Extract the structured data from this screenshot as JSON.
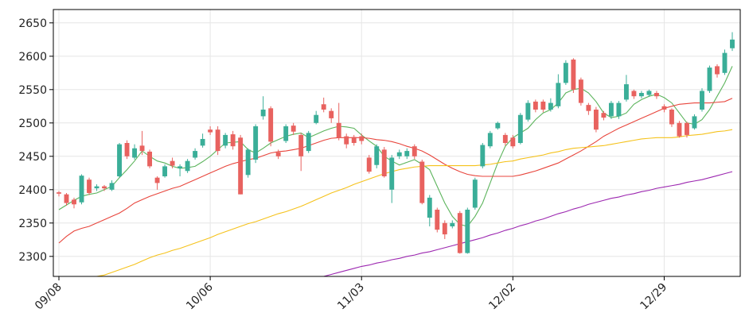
{
  "chart_data": {
    "type": "candlestick",
    "categories": [
      "09/08",
      null,
      null,
      null,
      null,
      null,
      null,
      null,
      null,
      null,
      null,
      null,
      null,
      null,
      null,
      null,
      null,
      null,
      null,
      null,
      "10/06",
      null,
      null,
      null,
      null,
      null,
      null,
      null,
      null,
      null,
      null,
      null,
      null,
      null,
      null,
      null,
      null,
      null,
      null,
      null,
      "11/03",
      null,
      null,
      null,
      null,
      null,
      null,
      null,
      null,
      null,
      null,
      null,
      null,
      null,
      null,
      null,
      null,
      null,
      null,
      null,
      "12/02",
      null,
      null,
      null,
      null,
      null,
      null,
      null,
      null,
      null,
      null,
      null,
      null,
      null,
      null,
      null,
      null,
      null,
      null,
      null,
      "12/29",
      null,
      null,
      null,
      null,
      null,
      null,
      null,
      null,
      null
    ],
    "open": [
      2396,
      2393,
      2385,
      2381,
      2415,
      2402,
      2405,
      2400,
      2420,
      2470,
      2448,
      2466,
      2457,
      2418,
      2420,
      2443,
      2432,
      2428,
      2448,
      2466,
      2490,
      2490,
      2466,
      2483,
      2478,
      2422,
      2445,
      2510,
      2522,
      2456,
      2473,
      2496,
      2482,
      2458,
      2500,
      2528,
      2518,
      2500,
      2480,
      2479,
      2480,
      2448,
      2437,
      2460,
      2400,
      2450,
      2450,
      2465,
      2442,
      2358,
      2370,
      2350,
      2345,
      2365,
      2305,
      2373,
      2435,
      2465,
      2492,
      2482,
      2478,
      2470,
      2505,
      2532,
      2532,
      2520,
      2525,
      2560,
      2595,
      2565,
      2527,
      2520,
      2515,
      2510,
      2510,
      2535,
      2548,
      2540,
      2542,
      2545,
      2525,
      2520,
      2500,
      2500,
      2492,
      2520,
      2548,
      2585,
      2575,
      2612
    ],
    "high": [
      2398,
      2395,
      2388,
      2423,
      2418,
      2408,
      2407,
      2414,
      2470,
      2474,
      2468,
      2488,
      2460,
      2420,
      2438,
      2448,
      2438,
      2446,
      2462,
      2484,
      2495,
      2495,
      2485,
      2488,
      2482,
      2462,
      2498,
      2540,
      2525,
      2460,
      2498,
      2500,
      2485,
      2488,
      2518,
      2538,
      2522,
      2530,
      2484,
      2482,
      2484,
      2452,
      2468,
      2464,
      2452,
      2460,
      2462,
      2468,
      2445,
      2392,
      2373,
      2354,
      2354,
      2368,
      2373,
      2418,
      2470,
      2488,
      2502,
      2485,
      2482,
      2515,
      2534,
      2535,
      2535,
      2537,
      2573,
      2594,
      2597,
      2568,
      2530,
      2524,
      2518,
      2533,
      2533,
      2572,
      2550,
      2548,
      2550,
      2548,
      2528,
      2522,
      2503,
      2502,
      2513,
      2552,
      2586,
      2588,
      2610,
      2636
    ],
    "low": [
      2390,
      2376,
      2372,
      2378,
      2392,
      2398,
      2398,
      2398,
      2418,
      2446,
      2445,
      2452,
      2432,
      2400,
      2418,
      2432,
      2420,
      2425,
      2445,
      2463,
      2482,
      2452,
      2462,
      2460,
      2393,
      2418,
      2440,
      2505,
      2465,
      2446,
      2470,
      2482,
      2428,
      2455,
      2498,
      2516,
      2500,
      2474,
      2462,
      2466,
      2468,
      2424,
      2432,
      2418,
      2380,
      2446,
      2446,
      2446,
      2378,
      2345,
      2336,
      2326,
      2342,
      2304,
      2304,
      2370,
      2432,
      2462,
      2490,
      2466,
      2462,
      2468,
      2502,
      2516,
      2516,
      2517,
      2522,
      2557,
      2545,
      2526,
      2512,
      2486,
      2504,
      2506,
      2506,
      2532,
      2536,
      2537,
      2539,
      2536,
      2516,
      2494,
      2478,
      2478,
      2490,
      2517,
      2545,
      2568,
      2572,
      2608
    ],
    "close": [
      2394,
      2380,
      2378,
      2421,
      2395,
      2405,
      2402,
      2410,
      2468,
      2450,
      2462,
      2458,
      2435,
      2410,
      2435,
      2436,
      2435,
      2443,
      2458,
      2476,
      2486,
      2458,
      2482,
      2465,
      2393,
      2460,
      2495,
      2520,
      2472,
      2450,
      2495,
      2487,
      2450,
      2485,
      2512,
      2520,
      2507,
      2478,
      2468,
      2470,
      2473,
      2427,
      2465,
      2420,
      2448,
      2456,
      2458,
      2450,
      2380,
      2388,
      2340,
      2333,
      2350,
      2305,
      2370,
      2415,
      2467,
      2485,
      2500,
      2470,
      2465,
      2512,
      2530,
      2520,
      2520,
      2530,
      2560,
      2590,
      2550,
      2530,
      2518,
      2490,
      2508,
      2530,
      2530,
      2558,
      2540,
      2545,
      2548,
      2540,
      2520,
      2498,
      2480,
      2482,
      2510,
      2548,
      2583,
      2573,
      2605,
      2625
    ],
    "up_color": "#3aae98",
    "down_color": "#e8625f",
    "series": [
      {
        "color": "#5cb45c",
        "values": [
          2370,
          2377,
          2384,
          2390,
          2393,
          2395,
          2400,
          2405,
          2418,
          2430,
          2443,
          2458,
          2450,
          2443,
          2440,
          2435,
          2432,
          2433,
          2435,
          2442,
          2450,
          2460,
          2470,
          2471,
          2472,
          2460,
          2455,
          2462,
          2470,
          2475,
          2480,
          2483,
          2485,
          2478,
          2483,
          2488,
          2492,
          2495,
          2494,
          2492,
          2482,
          2473,
          2465,
          2450,
          2443,
          2437,
          2441,
          2445,
          2438,
          2430,
          2405,
          2380,
          2360,
          2348,
          2345,
          2360,
          2380,
          2410,
          2440,
          2465,
          2478,
          2485,
          2492,
          2505,
          2515,
          2520,
          2530,
          2545,
          2550,
          2552,
          2545,
          2532,
          2515,
          2508,
          2510,
          2515,
          2528,
          2535,
          2540,
          2543,
          2538,
          2530,
          2515,
          2500,
          2498,
          2505,
          2520,
          2540,
          2560,
          2585
        ]
      },
      {
        "color": "#e8453c",
        "values": [
          2320,
          2330,
          2338,
          2342,
          2345,
          2350,
          2355,
          2360,
          2365,
          2372,
          2380,
          2385,
          2390,
          2394,
          2398,
          2402,
          2405,
          2410,
          2415,
          2420,
          2425,
          2430,
          2435,
          2439,
          2442,
          2445,
          2447,
          2451,
          2455,
          2457,
          2458,
          2460,
          2462,
          2466,
          2470,
          2474,
          2477,
          2478,
          2478,
          2478,
          2478,
          2477,
          2475,
          2474,
          2472,
          2469,
          2465,
          2462,
          2458,
          2452,
          2445,
          2438,
          2432,
          2427,
          2423,
          2421,
          2420,
          2420,
          2420,
          2420,
          2420,
          2422,
          2425,
          2428,
          2432,
          2436,
          2440,
          2446,
          2452,
          2458,
          2465,
          2472,
          2480,
          2486,
          2492,
          2497,
          2502,
          2507,
          2512,
          2517,
          2522,
          2525,
          2528,
          2529,
          2530,
          2530,
          2530,
          2531,
          2532,
          2537
        ]
      },
      {
        "color": "#f5c21b",
        "values": [
          null,
          null,
          null,
          null,
          null,
          2270,
          2272,
          2276,
          2280,
          2284,
          2288,
          2293,
          2298,
          2302,
          2305,
          2309,
          2312,
          2316,
          2320,
          2324,
          2328,
          2333,
          2337,
          2341,
          2345,
          2349,
          2352,
          2356,
          2360,
          2364,
          2367,
          2371,
          2375,
          2380,
          2385,
          2390,
          2395,
          2399,
          2403,
          2408,
          2412,
          2416,
          2420,
          2424,
          2427,
          2430,
          2432,
          2434,
          2435,
          2436,
          2436,
          2436,
          2436,
          2436,
          2436,
          2436,
          2437,
          2438,
          2440,
          2442,
          2443,
          2446,
          2448,
          2450,
          2452,
          2455,
          2457,
          2460,
          2462,
          2463,
          2464,
          2465,
          2466,
          2468,
          2470,
          2472,
          2474,
          2476,
          2477,
          2478,
          2478,
          2478,
          2479,
          2481,
          2482,
          2483,
          2485,
          2487,
          2488,
          2490
        ]
      },
      {
        "color": "#9c27b0",
        "values": [
          null,
          null,
          null,
          null,
          null,
          null,
          null,
          null,
          null,
          null,
          null,
          null,
          null,
          null,
          null,
          null,
          null,
          null,
          null,
          null,
          null,
          null,
          null,
          null,
          null,
          null,
          null,
          null,
          null,
          null,
          null,
          null,
          null,
          null,
          null,
          2270,
          2273,
          2276,
          2279,
          2282,
          2285,
          2287,
          2290,
          2292,
          2295,
          2297,
          2300,
          2302,
          2305,
          2307,
          2310,
          2313,
          2316,
          2319,
          2322,
          2325,
          2328,
          2332,
          2335,
          2339,
          2342,
          2346,
          2349,
          2353,
          2356,
          2360,
          2364,
          2367,
          2371,
          2374,
          2378,
          2381,
          2384,
          2387,
          2389,
          2392,
          2394,
          2397,
          2399,
          2402,
          2404,
          2406,
          2408,
          2411,
          2413,
          2415,
          2418,
          2421,
          2424,
          2427
        ]
      }
    ],
    "ylim": [
      2270,
      2670
    ],
    "yticks": [
      2300,
      2350,
      2400,
      2450,
      2500,
      2550,
      2600,
      2650
    ],
    "grid": true
  }
}
